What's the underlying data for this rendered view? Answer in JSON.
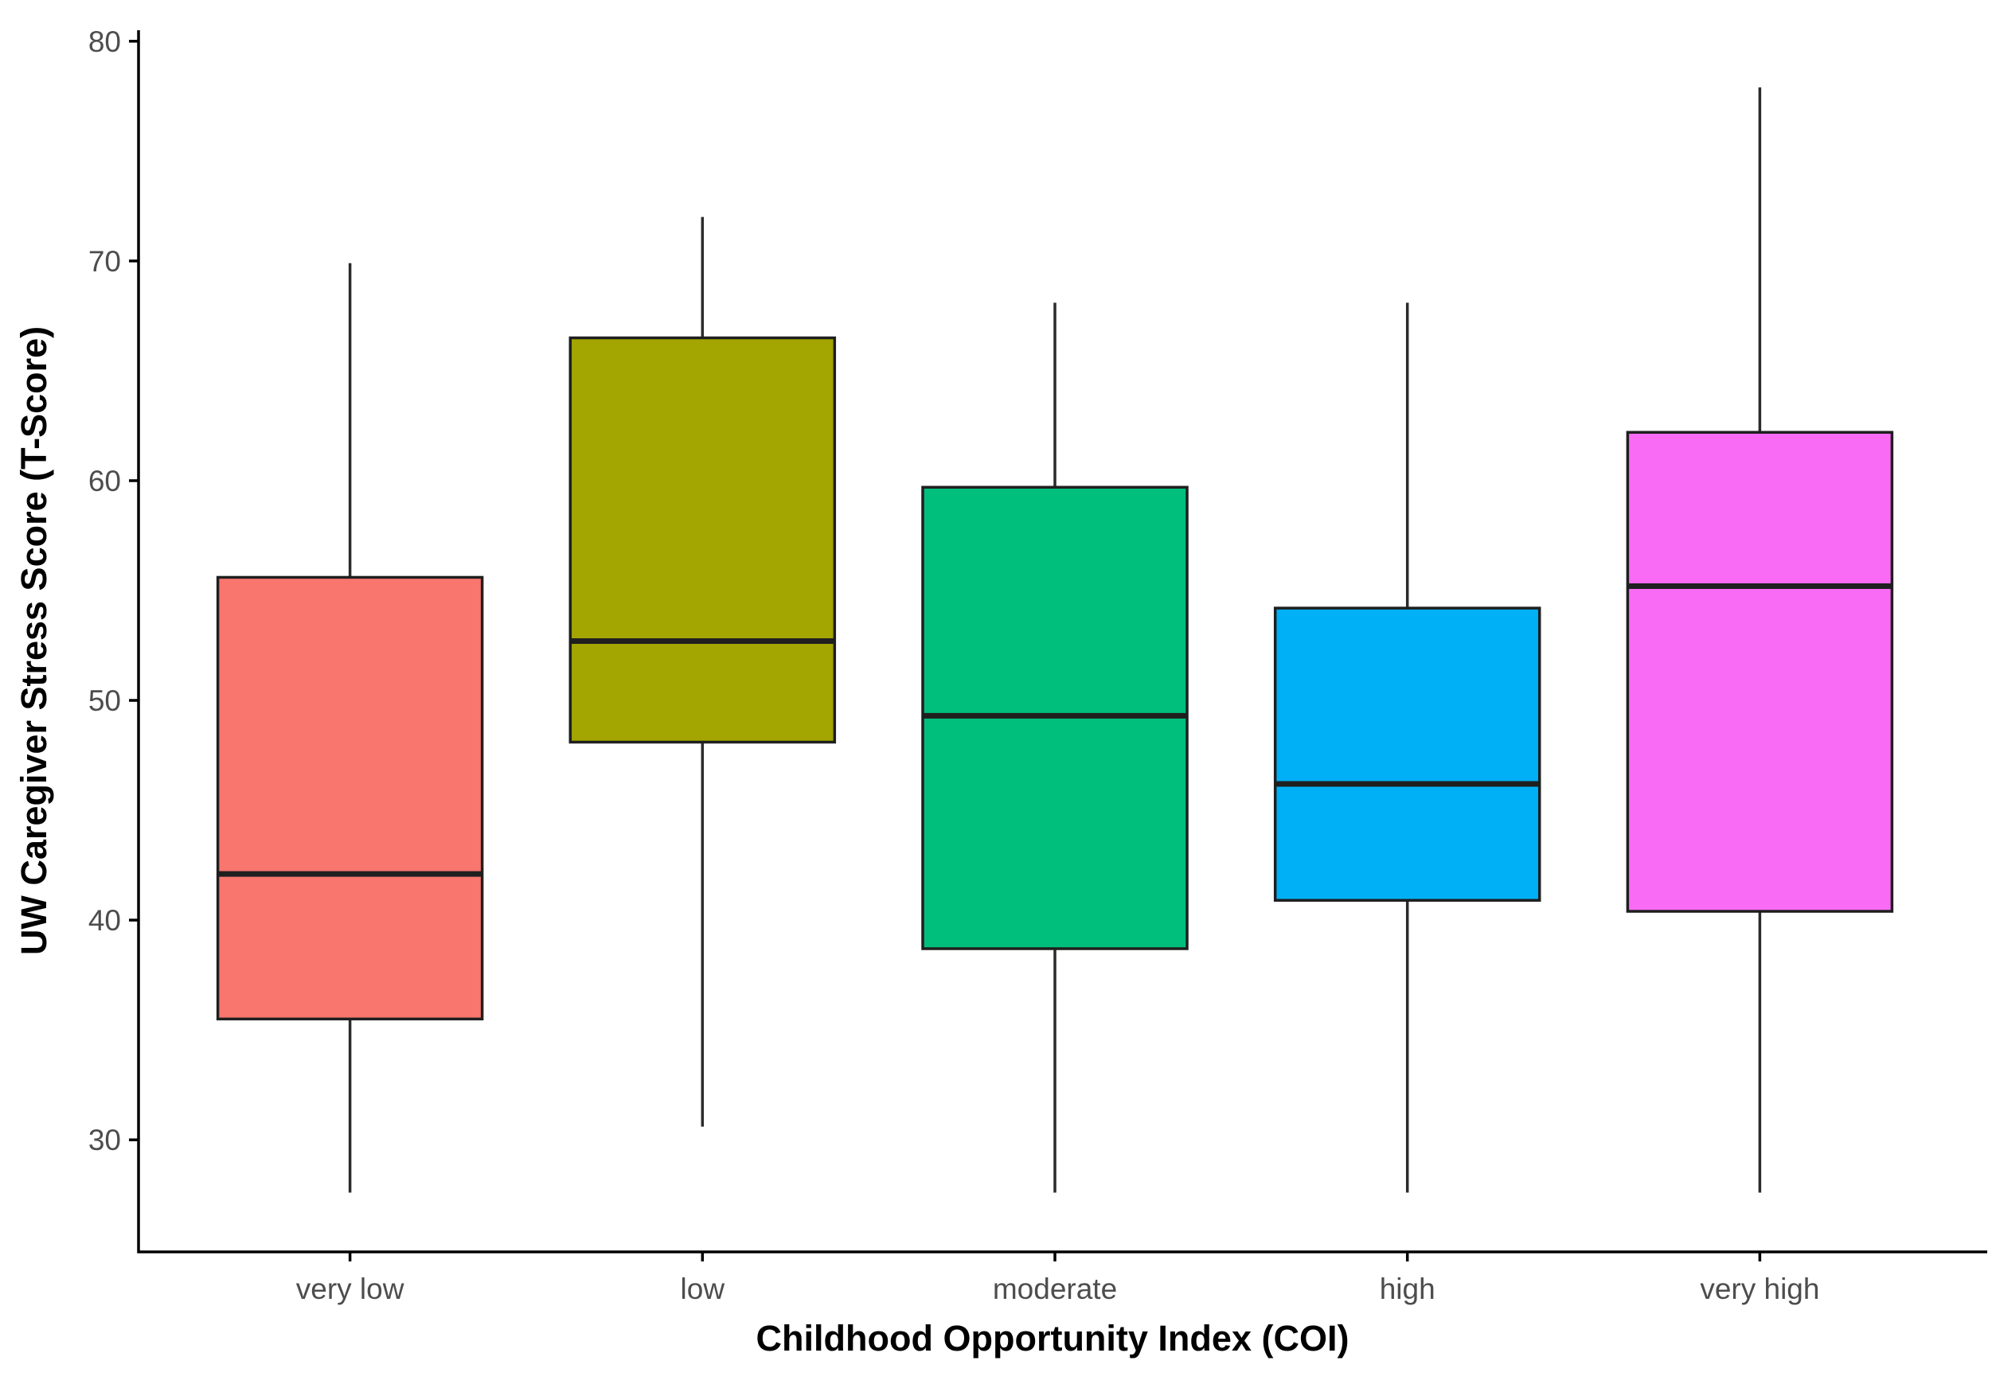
{
  "chart": {
    "background": "#ffffff",
    "y_axis": {
      "label": "UW Caregiver Stress Score (T-Score)",
      "ticks": [
        30,
        40,
        50,
        60,
        70,
        80
      ],
      "tick_label_color": "#4d4d4d",
      "axis_line_color": "#000000"
    },
    "x_axis": {
      "label": "Childhood Opportunity Index (COI)",
      "tick_label_color": "#4d4d4d",
      "axis_line_color": "#000000"
    }
  },
  "chart_data": {
    "type": "boxplot",
    "title": "",
    "xlabel": "Childhood Opportunity Index (COI)",
    "ylabel": "UW Caregiver Stress Score (T-Score)",
    "categories": [
      "very low",
      "low",
      "moderate",
      "high",
      "very high"
    ],
    "series": [
      {
        "name": "very low",
        "color": "#F8766D",
        "whisker_low": 27.6,
        "q1": 35.5,
        "median": 42.1,
        "q3": 55.6,
        "whisker_high": 69.9
      },
      {
        "name": "low",
        "color": "#A3A500",
        "whisker_low": 30.6,
        "q1": 48.1,
        "median": 52.7,
        "q3": 66.5,
        "whisker_high": 72.0
      },
      {
        "name": "moderate",
        "color": "#00BF7D",
        "whisker_low": 27.6,
        "q1": 38.7,
        "median": 49.3,
        "q3": 59.7,
        "whisker_high": 68.1
      },
      {
        "name": "high",
        "color": "#00B0F6",
        "whisker_low": 27.6,
        "q1": 40.9,
        "median": 46.2,
        "q3": 54.2,
        "whisker_high": 68.1
      },
      {
        "name": "very high",
        "color": "#FA6BF5",
        "whisker_low": 27.6,
        "q1": 40.4,
        "median": 55.2,
        "q3": 62.2,
        "whisker_high": 77.9
      }
    ],
    "yticks": [
      30,
      40,
      50,
      60,
      70,
      80
    ],
    "ylim": [
      24.9,
      80.5
    ],
    "grid": false,
    "legend": "none",
    "box_border_color": "#1f1f1f",
    "median_color": "#1f1f1f",
    "whisker_color": "#2b2b2b"
  }
}
